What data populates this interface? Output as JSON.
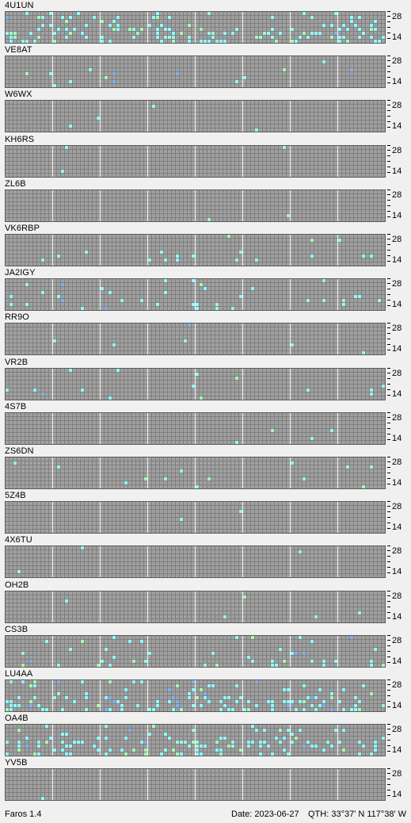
{
  "app": {
    "name": "Faros 1.4"
  },
  "status": {
    "date": "Date: 2023-06-27",
    "qth": "QTH: 33°37' N  117°38' W"
  },
  "axis": {
    "top": "28",
    "bottom": "14"
  },
  "colors": {
    "grid": "#7f7f7f",
    "cell_off": "#a0a0a0",
    "cell_on": "#8fffff",
    "cell_green": "#a8ffb0",
    "cell_blue": "#7fb0ff",
    "hour_line": "#f2f2f2"
  },
  "beacons": [
    {
      "callsign": "4U1UN",
      "activity": "high"
    },
    {
      "callsign": "VE8AT",
      "activity": "low"
    },
    {
      "callsign": "W6WX",
      "activity": "none"
    },
    {
      "callsign": "KH6RS",
      "activity": "none"
    },
    {
      "callsign": "ZL6B",
      "activity": "none"
    },
    {
      "callsign": "VK6RBP",
      "activity": "low"
    },
    {
      "callsign": "JA2IGY",
      "activity": "medium"
    },
    {
      "callsign": "RR9O",
      "activity": "none"
    },
    {
      "callsign": "VR2B",
      "activity": "low"
    },
    {
      "callsign": "4S7B",
      "activity": "none"
    },
    {
      "callsign": "ZS6DN",
      "activity": "low"
    },
    {
      "callsign": "5Z4B",
      "activity": "none"
    },
    {
      "callsign": "4X6TU",
      "activity": "none"
    },
    {
      "callsign": "OH2B",
      "activity": "none"
    },
    {
      "callsign": "CS3B",
      "activity": "medium"
    },
    {
      "callsign": "LU4AA",
      "activity": "high"
    },
    {
      "callsign": "OA4B",
      "activity": "high"
    },
    {
      "callsign": "YV5B",
      "activity": "none"
    }
  ]
}
